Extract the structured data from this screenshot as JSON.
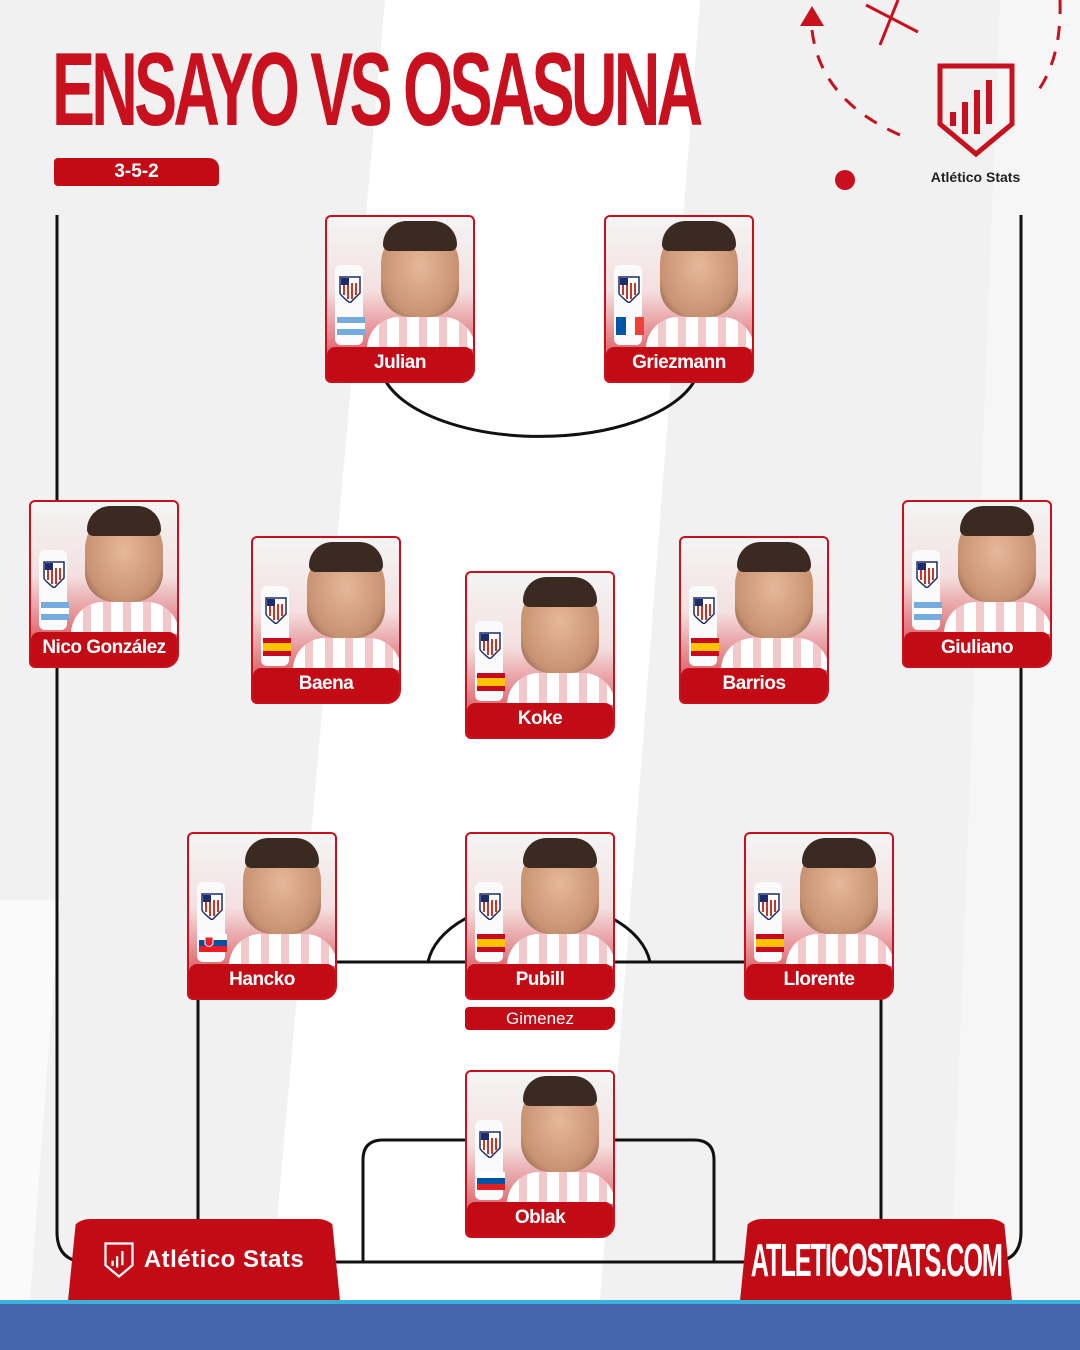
{
  "header": {
    "title": "ENSAYO VS OSASUNA",
    "formation": "3-5-2"
  },
  "brand": {
    "name": "Atlético Stats",
    "icon": "shield-bar-chart-icon"
  },
  "colors": {
    "accent": "#c30b15",
    "background": "#f1f1f1",
    "footer": "#4566ad"
  },
  "players": [
    {
      "name": "Julian",
      "flag": "argentina"
    },
    {
      "name": "Griezmann",
      "flag": "france"
    },
    {
      "name": "Nico González",
      "flag": "argentina"
    },
    {
      "name": "Baena",
      "flag": "spain"
    },
    {
      "name": "Koke",
      "flag": "spain"
    },
    {
      "name": "Barrios",
      "flag": "spain"
    },
    {
      "name": "Giuliano",
      "flag": "argentina"
    },
    {
      "name": "Hancko",
      "flag": "slovakia"
    },
    {
      "name": "Pubill",
      "flag": "spain"
    },
    {
      "name": "Llorente",
      "flag": "spain"
    },
    {
      "name": "Oblak",
      "flag": "slovenia"
    }
  ],
  "substitute": {
    "name": "Gimenez"
  },
  "footer": {
    "left_label": "Atlético Stats",
    "right_label": "ATLETICOSTATS.COM"
  }
}
